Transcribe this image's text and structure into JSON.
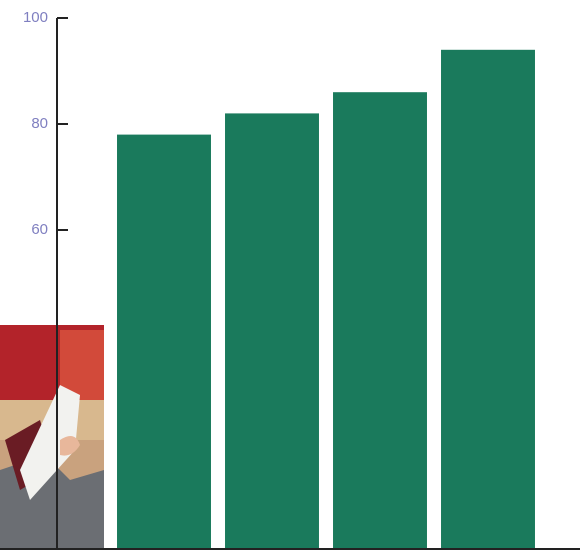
{
  "chart_data": {
    "type": "bar",
    "categories": [
      null,
      null,
      null,
      null
    ],
    "values": [
      78,
      82,
      86,
      94
    ],
    "color": "#1a7a5c",
    "ylim": [
      0,
      100
    ],
    "yticks": [
      60,
      80,
      100
    ]
  }
}
